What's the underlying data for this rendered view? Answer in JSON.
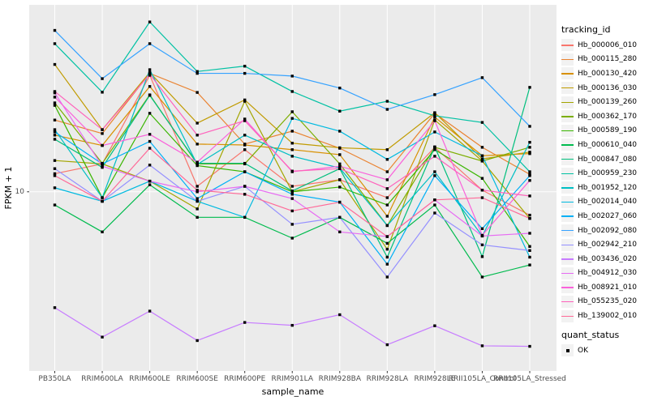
{
  "chart_data": {
    "type": "line",
    "xlabel": "sample_name",
    "ylabel": "FPKM + 1",
    "yscale": "log10",
    "ylim": [
      1.1,
      100
    ],
    "yticks": [
      {
        "value": 10,
        "label": "10"
      }
    ],
    "grid": "major-white-on-grey",
    "legend_position": "right",
    "point_shape": "square",
    "point_color": "#000000",
    "categories": [
      "PB350LA",
      "RRIM600LA",
      "RRIM600LE",
      "RRIM600SE",
      "RRIM600PE",
      "RRIM901LA",
      "RRIM928BA",
      "RRIM928LA",
      "RRIM928LE",
      "RRII105LA_Control",
      "RRII105LA_Stressed"
    ],
    "series": [
      {
        "name": "Hb_000006_010",
        "color": "#F8766D",
        "values": [
          12.5,
          14.1,
          42,
          10.7,
          16.8,
          10.7,
          11.6,
          9.3,
          17.3,
          10.2,
          7.5
        ]
      },
      {
        "name": "Hb_000115_280",
        "color": "#EA8331",
        "values": [
          24.2,
          20.5,
          43,
          34,
          18,
          21.1,
          17.1,
          12.8,
          26.3,
          17.3,
          12.4
        ]
      },
      {
        "name": "Hb_000130_420",
        "color": "#D89000",
        "values": [
          20.1,
          17.7,
          36.6,
          18,
          17.8,
          16.8,
          15.8,
          7.4,
          25.1,
          15.6,
          16
        ]
      },
      {
        "name": "Hb_000136_030",
        "color": "#C09B00",
        "values": [
          48,
          21.5,
          43.5,
          23.3,
          31,
          18.2,
          17.2,
          16.8,
          26.5,
          15,
          16.3
        ]
      },
      {
        "name": "Hb_000139_260",
        "color": "#A3A500",
        "values": [
          14.7,
          14.1,
          11.4,
          8.1,
          30.5,
          10,
          11.6,
          4.93,
          24.2,
          14.6,
          7.2
        ]
      },
      {
        "name": "Hb_000362_170",
        "color": "#7CAE00",
        "values": [
          29.9,
          14.2,
          33,
          14.1,
          14.1,
          26.8,
          14.1,
          6.6,
          17.3,
          14.6,
          17.3
        ]
      },
      {
        "name": "Hb_000589_190",
        "color": "#39B600",
        "values": [
          29,
          9.3,
          26.3,
          13.8,
          12.8,
          10,
          10.6,
          8.5,
          16.8,
          11.8,
          5.1
        ]
      },
      {
        "name": "Hb_000610_040",
        "color": "#00BB4E",
        "values": [
          8.5,
          6.1,
          10.9,
          7.3,
          7.3,
          5.65,
          7.3,
          5.3,
          8.5,
          3.5,
          4.06
        ]
      },
      {
        "name": "Hb_000847_080",
        "color": "#00BF7D",
        "values": [
          19.1,
          13.5,
          32.8,
          14.2,
          14.2,
          10.1,
          13.3,
          4.47,
          17.4,
          4.5,
          36.2
        ]
      },
      {
        "name": "Hb_000959_230",
        "color": "#00C1A3",
        "values": [
          62,
          34.1,
          81,
          44,
          47,
          34.4,
          27,
          30.5,
          25.5,
          23.5,
          12.8
        ]
      },
      {
        "name": "Hb_001952_120",
        "color": "#00BFC4",
        "values": [
          21.5,
          9.3,
          45,
          14,
          20.1,
          15.5,
          13.4,
          6.6,
          12.8,
          5.8,
          18.4
        ]
      },
      {
        "name": "Hb_002014_040",
        "color": "#00BAE0",
        "values": [
          10.5,
          8.9,
          11.4,
          8.9,
          7.3,
          24.7,
          21.1,
          14.9,
          20.9,
          15.6,
          4.47
        ]
      },
      {
        "name": "Hb_002027_060",
        "color": "#00B0F6",
        "values": [
          20.9,
          14.1,
          18.6,
          9.2,
          12.8,
          9.7,
          8.8,
          4.1,
          12.2,
          6.35,
          12.2
        ]
      },
      {
        "name": "Hb_002092_080",
        "color": "#35A2FF",
        "values": [
          73,
          40.3,
          62,
          43,
          43,
          41.6,
          35.9,
          27.6,
          33.1,
          40.8,
          22.4
        ]
      },
      {
        "name": "Hb_002942_210",
        "color": "#9590FF",
        "values": [
          13.3,
          8.9,
          13.9,
          8.9,
          10.7,
          6.7,
          7.3,
          3.5,
          7.7,
          5.2,
          4.85
        ]
      },
      {
        "name": "Hb_003436_020",
        "color": "#C77CFF",
        "values": [
          2.4,
          1.67,
          2.3,
          1.6,
          2.0,
          1.93,
          2.2,
          1.52,
          1.92,
          1.5,
          1.49
        ]
      },
      {
        "name": "Hb_004912_030",
        "color": "#E76BF3",
        "values": [
          33.8,
          13.7,
          11.4,
          10,
          10.7,
          9.2,
          6.1,
          5.76,
          9.05,
          5.8,
          6.0
        ]
      },
      {
        "name": "Hb_008921_010",
        "color": "#FA62DB",
        "values": [
          32.1,
          17.7,
          20.3,
          14.4,
          24.5,
          12.8,
          13.7,
          11.6,
          24,
          5.85,
          11.5
        ]
      },
      {
        "name": "Hb_055235_020",
        "color": "#FF62BC",
        "values": [
          34.4,
          21.5,
          42.5,
          20.1,
          24,
          12.9,
          13.3,
          10.4,
          15.5,
          10.2,
          9.5
        ]
      },
      {
        "name": "Hb_139002_010",
        "color": "#FF6A98",
        "values": [
          12.2,
          8.9,
          17.1,
          10.2,
          9.7,
          7.9,
          8.8,
          5.76,
          9.05,
          9.3,
          7.2
        ]
      }
    ]
  },
  "legend": {
    "tracking_title": "tracking_id",
    "quant_title": "quant_status",
    "quant_items": [
      {
        "label": "OK"
      }
    ]
  },
  "colors": {
    "panel_bg": "#EBEBEB",
    "grid": "#FFFFFF",
    "tick": "#333333",
    "tick_label": "#4D4D4D",
    "legend_key_bg": "#F2F2F2"
  }
}
